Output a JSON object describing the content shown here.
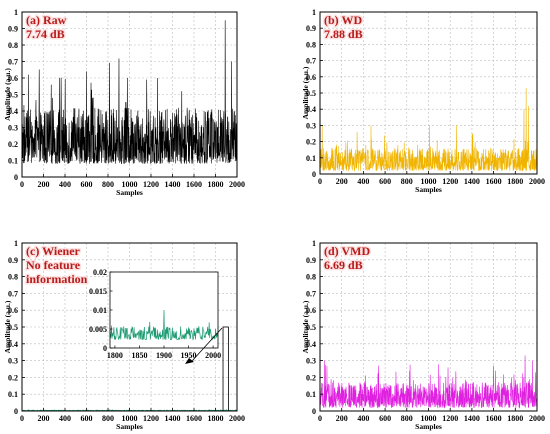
{
  "chart_data": [
    {
      "type": "line",
      "panel": "a",
      "annotation_lines": [
        "(a) Raw",
        "7.74 dB"
      ],
      "xlabel": "Samples",
      "ylabel": "Amplitude (a.u.)",
      "xlim": [
        0,
        2000
      ],
      "ylim": [
        0,
        1
      ],
      "xticks": [
        0,
        200,
        400,
        600,
        800,
        1000,
        1200,
        1400,
        1600,
        1800,
        2000
      ],
      "yticks": [
        0,
        0.1,
        0.2,
        0.3,
        0.4,
        0.5,
        0.6,
        0.7,
        0.8,
        0.9,
        1
      ],
      "grid": true,
      "color": "#000000",
      "series": [
        {
          "signal": {
            "baseline": 0.08,
            "spread": 0.34,
            "peaks": [
              [
                60,
                0.62
              ],
              [
                350,
                0.6
              ],
              [
                600,
                0.64
              ],
              [
                980,
                0.6
              ],
              [
                1160,
                0.59
              ],
              [
                1260,
                0.6
              ],
              [
                1890,
                0.95
              ],
              [
                1950,
                0.7
              ]
            ]
          }
        }
      ]
    },
    {
      "type": "line",
      "panel": "b",
      "annotation_lines": [
        "(b) WD",
        "7.88 dB"
      ],
      "xlabel": "Samples",
      "ylabel": "Amplitude (a.u.)",
      "xlim": [
        0,
        2000
      ],
      "ylim": [
        0,
        1
      ],
      "xticks": [
        0,
        200,
        400,
        600,
        800,
        1000,
        1200,
        1400,
        1600,
        1800,
        2000
      ],
      "yticks": [
        0,
        0.1,
        0.2,
        0.3,
        0.4,
        0.5,
        0.6,
        0.7,
        0.8,
        0.9,
        1
      ],
      "grid": true,
      "color": "#f0b400",
      "series": [
        {
          "signal": {
            "baseline": 0.02,
            "spread": 0.14,
            "peaks": [
              [
                20,
                0.3
              ],
              [
                470,
                0.3
              ],
              [
                1010,
                0.3
              ],
              [
                1260,
                0.3
              ],
              [
                1880,
                0.4
              ],
              [
                1900,
                0.53
              ],
              [
                1920,
                0.42
              ]
            ]
          }
        }
      ]
    },
    {
      "type": "line",
      "panel": "c",
      "annotation_lines": [
        "(c) Wiener",
        "No feature",
        "information"
      ],
      "xlabel": "Samples",
      "ylabel": "Amplitude (a.u.)",
      "xlim": [
        0,
        2000
      ],
      "ylim": [
        0,
        1
      ],
      "xticks": [
        0,
        200,
        400,
        600,
        800,
        1000,
        1200,
        1400,
        1600,
        1800,
        2000
      ],
      "yticks": [
        0,
        0.1,
        0.2,
        0.3,
        0.4,
        0.5,
        0.6,
        0.7,
        0.8,
        0.9,
        1
      ],
      "grid": true,
      "color": "#1a9a70",
      "series": [
        {
          "signal": {
            "baseline": 0.002,
            "spread": 0.003,
            "peaks": [
              [
                1900,
                0.01
              ]
            ]
          }
        }
      ],
      "inset": {
        "xlim": [
          1790,
          2010
        ],
        "ylim": [
          0,
          0.02
        ],
        "xticks": [
          1800,
          1850,
          1900,
          1950,
          2000
        ],
        "yticks": [
          0,
          0.005,
          0.01,
          0.015,
          0.02
        ],
        "ytick_labels": [
          "0",
          "0.005",
          "0.01",
          "0.015",
          "0.02"
        ],
        "zoom_box": {
          "x": [
            1870,
            1920
          ],
          "y": [
            0,
            0.02
          ]
        }
      }
    },
    {
      "type": "line",
      "panel": "d",
      "annotation_lines": [
        "(d) VMD",
        "6.69 dB"
      ],
      "xlabel": "Samples",
      "ylabel": "Amplitude (a.u.)",
      "xlim": [
        0,
        2000
      ],
      "ylim": [
        0,
        1
      ],
      "xticks": [
        0,
        200,
        400,
        600,
        800,
        1000,
        1200,
        1400,
        1600,
        1800,
        2000
      ],
      "yticks": [
        0,
        0.1,
        0.2,
        0.3,
        0.4,
        0.5,
        0.6,
        0.7,
        0.8,
        0.9,
        1
      ],
      "grid": true,
      "color": "#e020e0",
      "series": [
        {
          "signal": {
            "baseline": 0.02,
            "spread": 0.15,
            "peaks": [
              [
                40,
                0.3
              ],
              [
                540,
                0.27
              ],
              [
                1180,
                0.26
              ],
              [
                1600,
                0.27
              ],
              [
                1890,
                0.33
              ],
              [
                1960,
                0.3
              ]
            ]
          }
        }
      ]
    }
  ]
}
